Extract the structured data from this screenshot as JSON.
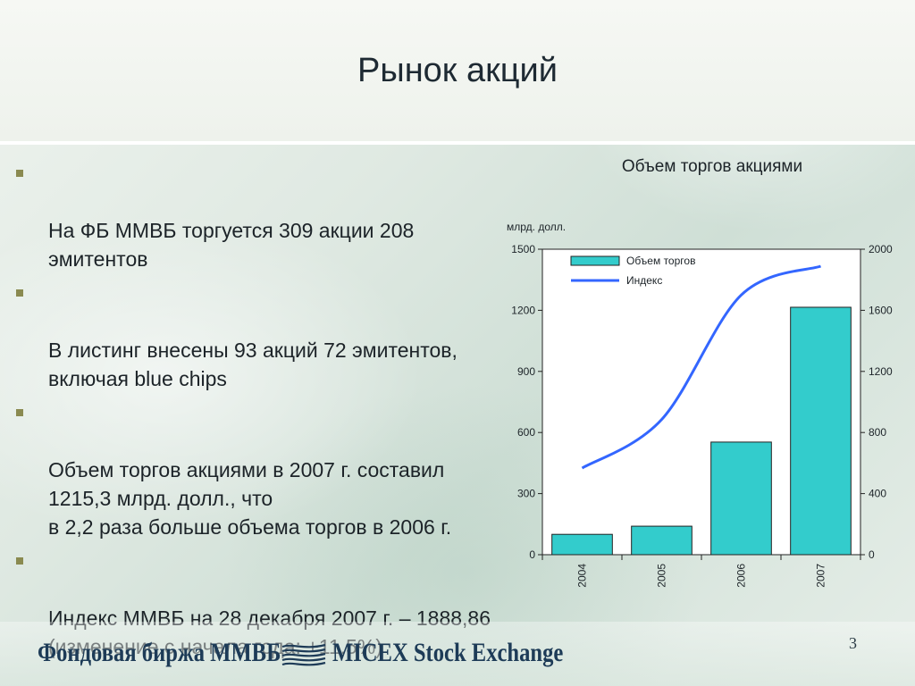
{
  "title": "Рынок акций",
  "bullets": [
    "На ФБ ММВБ торгуется 309 акции 208 эмитентов",
    "В листинг внесены 93 акций 72 эмитентов, включая blue chips",
    "Объем торгов акциями в 2007 г. составил 1215,3 млрд. долл., что\nв 2,2 раза больше объема торгов в 2006 г.",
    "Индекс ММВБ на 28 декабря 2007 г. – 1888,86\n(изменение с начала года: +11,5%)"
  ],
  "footer": {
    "left": "Фондовая биржа ММВБ",
    "right": "MICEX Stock Exchange",
    "page_number": "3"
  },
  "colors": {
    "bar": "#33cccc",
    "line": "#3366ff",
    "bullet": "#8a8a50",
    "footer_text": "#1d3b57"
  },
  "chart_data": {
    "type": "bar",
    "title": "Объем торгов акциями",
    "ylabel": "млрд. долл.",
    "categories": [
      "2004",
      "2005",
      "2006",
      "2007"
    ],
    "series": [
      {
        "name": "Объем торгов",
        "type": "bar",
        "axis": "left",
        "values": [
          100,
          140,
          553,
          1215
        ]
      },
      {
        "name": "Индекс",
        "type": "line",
        "axis": "right",
        "values": [
          567,
          885,
          1700,
          1888.86
        ]
      }
    ],
    "y_left": {
      "min": 0,
      "max": 1500,
      "ticks": [
        0,
        300,
        600,
        900,
        1200,
        1500
      ]
    },
    "y_right": {
      "min": 0,
      "max": 2000,
      "ticks": [
        0,
        400,
        800,
        1200,
        1600,
        2000
      ]
    },
    "legend_position": "top-left",
    "grid": false
  }
}
